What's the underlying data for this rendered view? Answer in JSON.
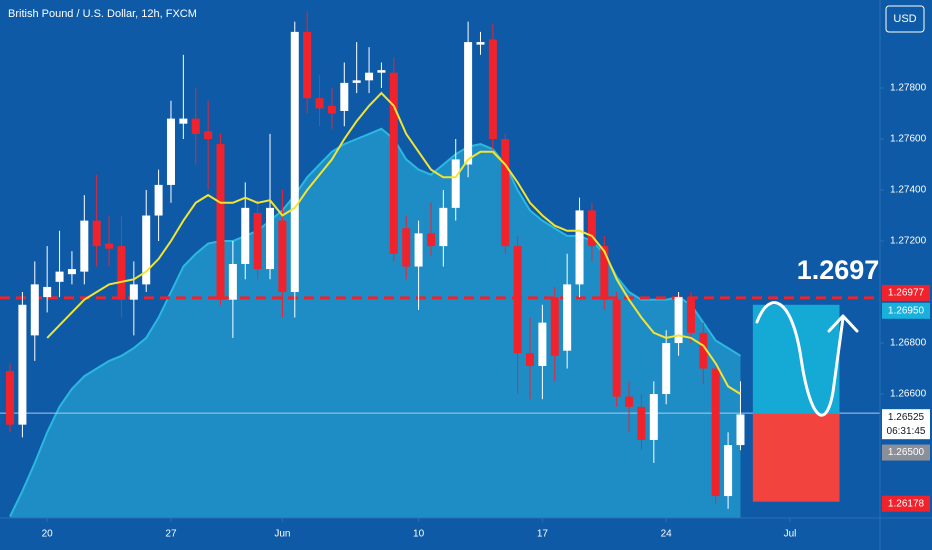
{
  "chart_data": {
    "type": "candlestick",
    "title": "British Pound / U.S. Dollar, 12h, FXCM",
    "currency": "USD",
    "x": [
      0,
      1,
      2,
      3,
      4,
      5,
      6,
      7,
      8,
      9,
      10,
      11,
      12,
      13,
      14,
      15,
      16,
      17,
      18,
      19,
      20,
      21,
      22,
      23,
      24,
      25,
      26,
      27,
      28,
      29,
      30,
      31,
      32,
      33,
      34,
      35,
      36,
      37,
      38,
      39,
      40,
      41,
      42,
      43,
      44,
      45,
      46,
      47,
      48,
      49,
      50,
      51,
      52,
      53,
      54,
      55,
      56,
      57,
      58,
      59
    ],
    "open": [
      1.2669,
      1.2648,
      1.2683,
      1.2698,
      1.2704,
      1.2707,
      1.2708,
      1.2728,
      1.2719,
      1.2718,
      1.2697,
      1.2703,
      1.273,
      1.2742,
      1.2766,
      1.2768,
      1.2763,
      1.2758,
      1.2697,
      1.2711,
      1.2731,
      1.2709,
      1.2728,
      1.27,
      1.2802,
      1.2776,
      1.2773,
      1.2771,
      1.2782,
      1.2783,
      1.2786,
      1.2786,
      1.2725,
      1.271,
      1.2723,
      1.2718,
      1.2733,
      1.275,
      1.2797,
      1.2799,
      1.276,
      1.2718,
      1.2676,
      1.2671,
      1.2698,
      1.2677,
      1.2703,
      1.2732,
      1.2718,
      1.2697,
      1.2659,
      1.2655,
      1.2642,
      1.266,
      1.268,
      1.2698,
      1.2684,
      1.267,
      1.262,
      1.264
    ],
    "high": [
      1.2672,
      1.27,
      1.2712,
      1.2718,
      1.2724,
      1.2716,
      1.2738,
      1.2746,
      1.273,
      1.273,
      1.2712,
      1.274,
      1.2748,
      1.2775,
      1.2793,
      1.278,
      1.2775,
      1.2762,
      1.272,
      1.2743,
      1.2736,
      1.2762,
      1.274,
      1.2806,
      1.281,
      1.2785,
      1.278,
      1.279,
      1.2798,
      1.2796,
      1.279,
      1.2792,
      1.273,
      1.2728,
      1.2735,
      1.274,
      1.276,
      1.2806,
      1.2802,
      1.2805,
      1.2762,
      1.2722,
      1.269,
      1.2695,
      1.2702,
      1.2715,
      1.2737,
      1.2735,
      1.2722,
      1.27,
      1.2665,
      1.266,
      1.2665,
      1.2685,
      1.27,
      1.27,
      1.2688,
      1.2673,
      1.2645,
      1.2665
    ],
    "low": [
      1.2645,
      1.2643,
      1.2673,
      1.2692,
      1.2698,
      1.2703,
      1.2703,
      1.271,
      1.271,
      1.269,
      1.2683,
      1.27,
      1.272,
      1.2735,
      1.276,
      1.275,
      1.274,
      1.2695,
      1.2682,
      1.2705,
      1.2705,
      1.2705,
      1.269,
      1.269,
      1.277,
      1.2765,
      1.2764,
      1.2765,
      1.2778,
      1.2778,
      1.278,
      1.2712,
      1.2705,
      1.2693,
      1.2714,
      1.271,
      1.2728,
      1.2745,
      1.2793,
      1.2755,
      1.2715,
      1.266,
      1.2658,
      1.2658,
      1.2665,
      1.267,
      1.2698,
      1.2712,
      1.2693,
      1.2655,
      1.2645,
      1.2638,
      1.2633,
      1.2656,
      1.2675,
      1.268,
      1.2664,
      1.2617,
      1.2615,
      1.2638
    ],
    "close": [
      1.2648,
      1.2695,
      1.2703,
      1.2702,
      1.2708,
      1.2709,
      1.2728,
      1.2718,
      1.2717,
      1.2697,
      1.2703,
      1.273,
      1.2742,
      1.2768,
      1.2768,
      1.2762,
      1.276,
      1.2697,
      1.2711,
      1.2733,
      1.2709,
      1.2733,
      1.27,
      1.2802,
      1.2776,
      1.2772,
      1.277,
      1.2782,
      1.2783,
      1.2786,
      1.2787,
      1.2715,
      1.271,
      1.2723,
      1.2718,
      1.2733,
      1.2752,
      1.2798,
      1.2798,
      1.276,
      1.2718,
      1.2676,
      1.2671,
      1.2688,
      1.2675,
      1.2703,
      1.2732,
      1.2718,
      1.2697,
      1.2659,
      1.2655,
      1.2642,
      1.266,
      1.268,
      1.2698,
      1.2684,
      1.267,
      1.262,
      1.264,
      1.2652
    ],
    "up_color": "#ffffff",
    "down_color": "#f0232d",
    "series": [
      {
        "kind": "area",
        "color": "#2bb8e0",
        "values": [
          1.2612,
          1.2622,
          1.2633,
          1.2645,
          1.2655,
          1.2662,
          1.2667,
          1.267,
          1.2673,
          1.2675,
          1.2678,
          1.2682,
          1.269,
          1.27,
          1.271,
          1.2715,
          1.2719,
          1.272,
          1.272,
          1.2722,
          1.2724,
          1.2728,
          1.2732,
          1.2738,
          1.2745,
          1.275,
          1.2755,
          1.2758,
          1.276,
          1.2762,
          1.2764,
          1.276,
          1.2752,
          1.2748,
          1.2746,
          1.275,
          1.2754,
          1.2757,
          1.2758,
          1.2756,
          1.275,
          1.274,
          1.2732,
          1.2728,
          1.2725,
          1.2722,
          1.2722,
          1.272,
          1.2715,
          1.2706,
          1.27,
          1.2697,
          1.2697,
          1.2697,
          1.2698,
          1.2695,
          1.2688,
          1.2681,
          1.2678,
          1.2675
        ]
      },
      {
        "kind": "line",
        "color": "#f2e431",
        "values": [
          null,
          null,
          null,
          1.2682,
          1.2687,
          1.2692,
          1.2697,
          1.27,
          1.2703,
          1.2704,
          1.2705,
          1.2708,
          1.2713,
          1.272,
          1.2728,
          1.2735,
          1.2738,
          1.2735,
          1.2735,
          1.2737,
          1.2735,
          1.2736,
          1.273,
          1.2733,
          1.274,
          1.2746,
          1.2752,
          1.276,
          1.2767,
          1.2773,
          1.2778,
          1.2773,
          1.2762,
          1.2755,
          1.2748,
          1.2745,
          1.2745,
          1.2752,
          1.2755,
          1.2755,
          1.275,
          1.2743,
          1.2735,
          1.273,
          1.2726,
          1.2724,
          1.2724,
          1.2722,
          1.2716,
          1.2705,
          1.2697,
          1.269,
          1.2684,
          1.2682,
          1.2683,
          1.2682,
          1.2679,
          1.2672,
          1.2663,
          1.266
        ]
      }
    ],
    "xlim": [
      -0.81,
      70.27
    ],
    "ylim": [
      1.26114,
      1.28145
    ],
    "xticks": [
      {
        "value": 3,
        "label": "20"
      },
      {
        "value": 13,
        "label": "27"
      },
      {
        "value": 22,
        "label": "Jun"
      },
      {
        "value": 33,
        "label": "10"
      },
      {
        "value": 43,
        "label": "17"
      },
      {
        "value": 53,
        "label": "24"
      },
      {
        "value": 63,
        "label": "Jul"
      }
    ],
    "yticks": [
      {
        "value": 1.278,
        "label": "1.27800"
      },
      {
        "value": 1.276,
        "label": "1.27600"
      },
      {
        "value": 1.274,
        "label": "1.27400"
      },
      {
        "value": 1.272,
        "label": "1.27200"
      },
      {
        "value": 1.268,
        "label": "1.26800"
      },
      {
        "value": 1.266,
        "label": "1.26600"
      }
    ],
    "grid": false,
    "lines": [
      {
        "value": 1.26977,
        "color": "#f0232d",
        "dashed": true
      },
      {
        "value": 1.26525,
        "color": "#a9cbe8",
        "dashed": false
      }
    ],
    "price_labels": [
      {
        "value": 1.26977,
        "label": "1.26977",
        "color": "#f0232d"
      },
      {
        "value": 1.2695,
        "label": "1.26950",
        "color": "#1ab0dc"
      },
      {
        "value": 1.26525,
        "label": "1.26525",
        "color": "#ffffff",
        "sublabel": "06:31:45"
      },
      {
        "value": 1.265,
        "label": "1.26500",
        "color": "#8a8f99"
      },
      {
        "value": 1.26178,
        "label": "1.26178",
        "color": "#f0232d"
      }
    ],
    "annotation": "1.2697",
    "projection": {
      "x": [
        60,
        67
      ],
      "target": 1.2695,
      "entry": 1.26525,
      "stop": 1.26178,
      "target_color": "#15a9d6",
      "stop_color": "#f2433f"
    }
  }
}
